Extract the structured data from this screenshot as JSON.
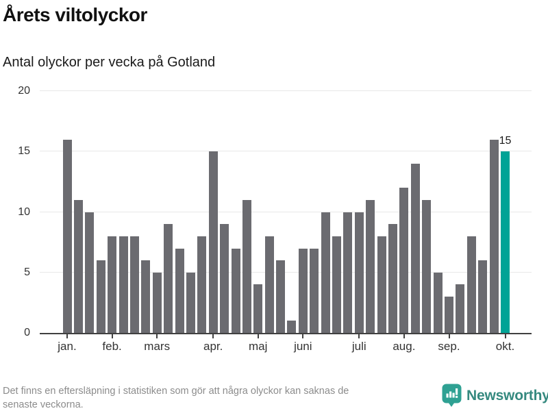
{
  "header": {
    "title": "Årets viltolyckor",
    "subtitle": "Antal olyckor per vecka på Gotland"
  },
  "chart_data": {
    "type": "bar",
    "title": "Årets viltolyckor",
    "subtitle": "Antal olyckor per vecka på Gotland",
    "values": [
      16,
      11,
      10,
      6,
      8,
      8,
      8,
      6,
      5,
      9,
      7,
      5,
      8,
      15,
      9,
      7,
      11,
      4,
      8,
      6,
      1,
      7,
      7,
      10,
      8,
      10,
      10,
      11,
      8,
      9,
      12,
      14,
      11,
      5,
      3,
      4,
      8,
      6,
      16,
      15
    ],
    "highlight_index": 39,
    "highlight_value_label": "15",
    "bar_color": "#6b6b70",
    "highlight_color": "#00a396",
    "ylim": [
      0,
      20
    ],
    "y_ticks": [
      0,
      5,
      10,
      15,
      20
    ],
    "month_ticks": [
      {
        "index": 0,
        "label": "jan."
      },
      {
        "index": 4,
        "label": "feb."
      },
      {
        "index": 8,
        "label": "mars"
      },
      {
        "index": 13,
        "label": "apr."
      },
      {
        "index": 17,
        "label": "maj"
      },
      {
        "index": 21,
        "label": "juni"
      },
      {
        "index": 26,
        "label": "juli"
      },
      {
        "index": 30,
        "label": "aug."
      },
      {
        "index": 34,
        "label": "sep."
      },
      {
        "index": 39,
        "label": "okt."
      }
    ],
    "grid": true,
    "legend": false
  },
  "footer": {
    "note_lines": [
      "Det finns en eftersläpning i statistiken som gör att några olyckor kan saknas de",
      "senaste veckorna."
    ],
    "logo_text": "Newsworthy"
  }
}
